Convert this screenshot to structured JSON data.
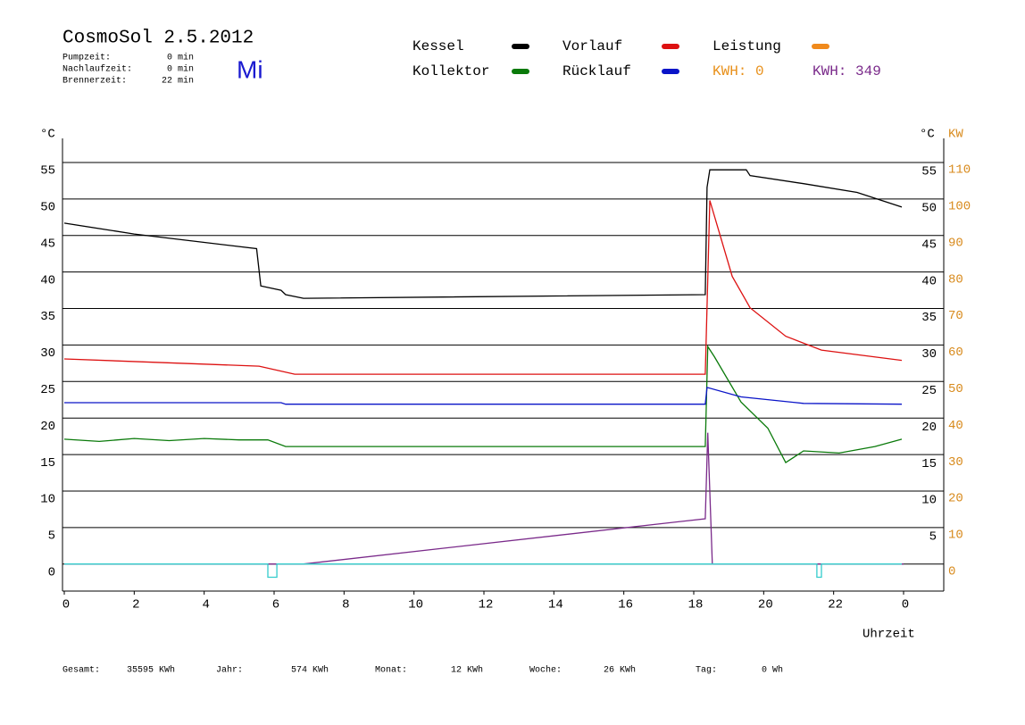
{
  "header": {
    "title": "CosmoSol 2.5.2012",
    "day": "Mi",
    "stats": [
      {
        "label": "Pumpzeit:",
        "value": "0 min"
      },
      {
        "label": "Nachlaufzeit:",
        "value": "0 min"
      },
      {
        "label": "Brennerzeit:",
        "value": "22 min"
      }
    ]
  },
  "footer": [
    {
      "label": "Gesamt:",
      "value": "35595 KWh"
    },
    {
      "label": "Jahr:",
      "value": "574 KWh"
    },
    {
      "label": "Monat:",
      "value": "12 KWh"
    },
    {
      "label": "Woche:",
      "value": "26 KWh"
    },
    {
      "label": "Tag:",
      "value": "0 Wh"
    }
  ],
  "chart_data": {
    "type": "line",
    "ylabel": "°C",
    "ylabel_right": "°C",
    "y2label": "KW",
    "xlabel": "Uhrzeit",
    "xlim": [
      0,
      24
    ],
    "xticks": [
      0,
      2,
      4,
      6,
      8,
      10,
      12,
      14,
      16,
      18,
      20,
      22,
      {
        "value": 24,
        "label": "0"
      }
    ],
    "ylim": [
      -3.7,
      58.3
    ],
    "yticks": [
      0,
      5,
      10,
      15,
      20,
      25,
      30,
      35,
      40,
      45,
      50,
      55
    ],
    "yticks_right": [
      5,
      10,
      15,
      20,
      25,
      30,
      35,
      40,
      45,
      50,
      55
    ],
    "y2lim": [
      -7.4,
      116.6
    ],
    "y2ticks": [
      0,
      10,
      20,
      30,
      40,
      50,
      60,
      70,
      80,
      90,
      100,
      110
    ],
    "grid": true,
    "kwh_labels": [
      {
        "text": "KWH: 0",
        "color": "#e8901a"
      },
      {
        "text": "KWH: 349",
        "color": "#7a2a8a"
      }
    ],
    "series": [
      {
        "name": "Kessel",
        "color": "#000000",
        "x": [
          0,
          2,
          5.5,
          5.62,
          6.2,
          6.33,
          6.84,
          18.33,
          18.38,
          18.46,
          19.5,
          19.61,
          21.14,
          22.67,
          23.95
        ],
        "values": [
          46.7,
          45.2,
          43.2,
          38.1,
          37.5,
          36.9,
          36.4,
          36.9,
          51.6,
          54.0,
          54.0,
          53.2,
          52.1,
          50.9,
          48.9
        ]
      },
      {
        "name": "Vorlauf",
        "color": "#dd1111",
        "x": [
          0,
          5.57,
          6.59,
          18.33,
          18.46,
          19.1,
          19.61,
          20.63,
          21.65,
          23.95
        ],
        "values": [
          28.1,
          27.1,
          26.0,
          26.0,
          49.8,
          39.4,
          35.1,
          31.2,
          29.3,
          27.9
        ]
      },
      {
        "name": "Leistung",
        "color": "#f08a1c",
        "x": [],
        "values": []
      },
      {
        "name": "Kollektor",
        "color": "#0a7a0a",
        "x": [
          0,
          1,
          2,
          3,
          4,
          5,
          5.82,
          6.33,
          18.33,
          18.4,
          18.59,
          19.35,
          20.12,
          20.63,
          21.14,
          22.16,
          23.18,
          23.95
        ],
        "values": [
          17.1,
          16.8,
          17.2,
          16.9,
          17.2,
          17.0,
          17.0,
          16.1,
          16.1,
          29.8,
          28.4,
          22.2,
          18.6,
          13.9,
          15.5,
          15.2,
          16.1,
          17.1
        ]
      },
      {
        "name": "Rücklauf",
        "color": "#0a14c8",
        "x": [
          0,
          6.2,
          6.33,
          18.33,
          18.38,
          19.35,
          21.14,
          23.95
        ],
        "values": [
          22.1,
          22.1,
          21.9,
          21.9,
          24.2,
          22.9,
          22.0,
          21.9
        ]
      },
      {
        "color": "#7a2a8a",
        "x": [
          0,
          6.84,
          18.33,
          18.4,
          18.53,
          24
        ],
        "values": [
          0,
          0,
          6.2,
          18.0,
          0,
          0
        ]
      },
      {
        "color": "#33cccc",
        "x": [
          0,
          5.82,
          5.82,
          6.08,
          6.08,
          21.52,
          21.52,
          21.65,
          21.65,
          23.95
        ],
        "values": [
          0,
          0,
          -1.8,
          -1.8,
          0,
          0,
          -1.8,
          -1.8,
          0,
          0
        ]
      }
    ]
  }
}
